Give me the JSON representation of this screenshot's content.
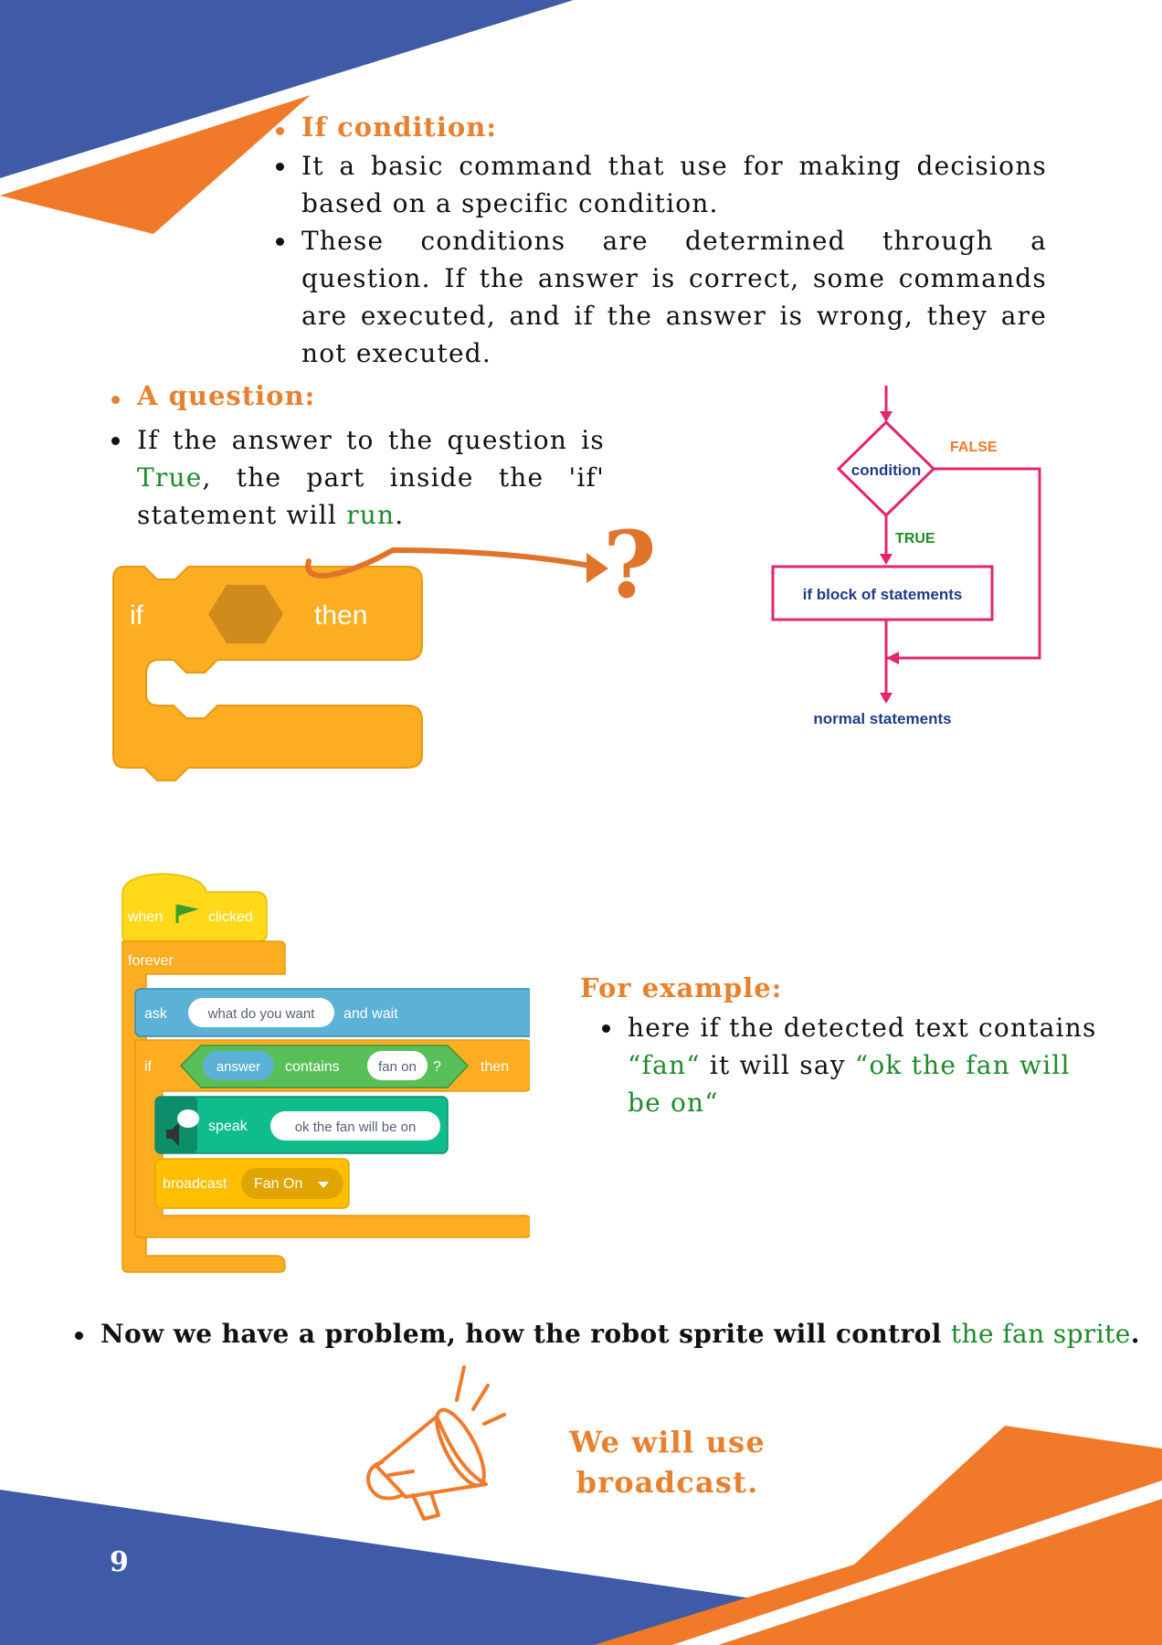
{
  "page_number": "9",
  "colors": {
    "blue": "#3f5aa6",
    "orange": "#f07a2a",
    "green": "#1e8a2a",
    "heading_orange": "#e8812f",
    "block_orange": "#fdad21",
    "flow_pink": "#e3246f"
  },
  "if_section": {
    "heading": "If condition:",
    "bullets": [
      "It a basic command that use  for making decisions based on a specific condition.",
      "These conditions are determined through a  question. If the answer is correct, some commands are executed, and if the answer is wrong, they are not executed."
    ]
  },
  "question_section": {
    "heading": "A question:",
    "text_1": "If the answer to the question is ",
    "true_word": "True",
    "text_2": ", the part inside the 'if' statement will ",
    "run_word": "run",
    "text_3": "."
  },
  "if_block": {
    "if_label": "if",
    "then_label": "then",
    "question_mark": "?"
  },
  "flowchart": {
    "condition": "condition",
    "false_label": "FALSE",
    "true_label": "TRUE",
    "block": "if block of statements",
    "normal": "normal statements"
  },
  "scratch_script": {
    "when": "when",
    "clicked": "clicked",
    "forever": "forever",
    "ask": "ask",
    "ask_input": "what do you want",
    "and_wait": "and wait",
    "if": "if",
    "answer": "answer",
    "contains": "contains",
    "contains_input": "fan on",
    "q": "?",
    "then": "then",
    "speak": "speak",
    "speak_input": "ok the fan will be on",
    "broadcast": "broadcast",
    "broadcast_value": "Fan On"
  },
  "example": {
    "heading": "For example:",
    "text_1": " here if the detected text contains ",
    "fan_quote": "“fan“",
    "text_2": " it will say ",
    "say_quote": "“ok the fan will be on“"
  },
  "problem": {
    "text": "Now we have a problem,  how the robot sprite will control ",
    "highlight": "the fan sprite",
    "end": "."
  },
  "callout": {
    "line1": "We will use",
    "line2": "broadcast."
  }
}
